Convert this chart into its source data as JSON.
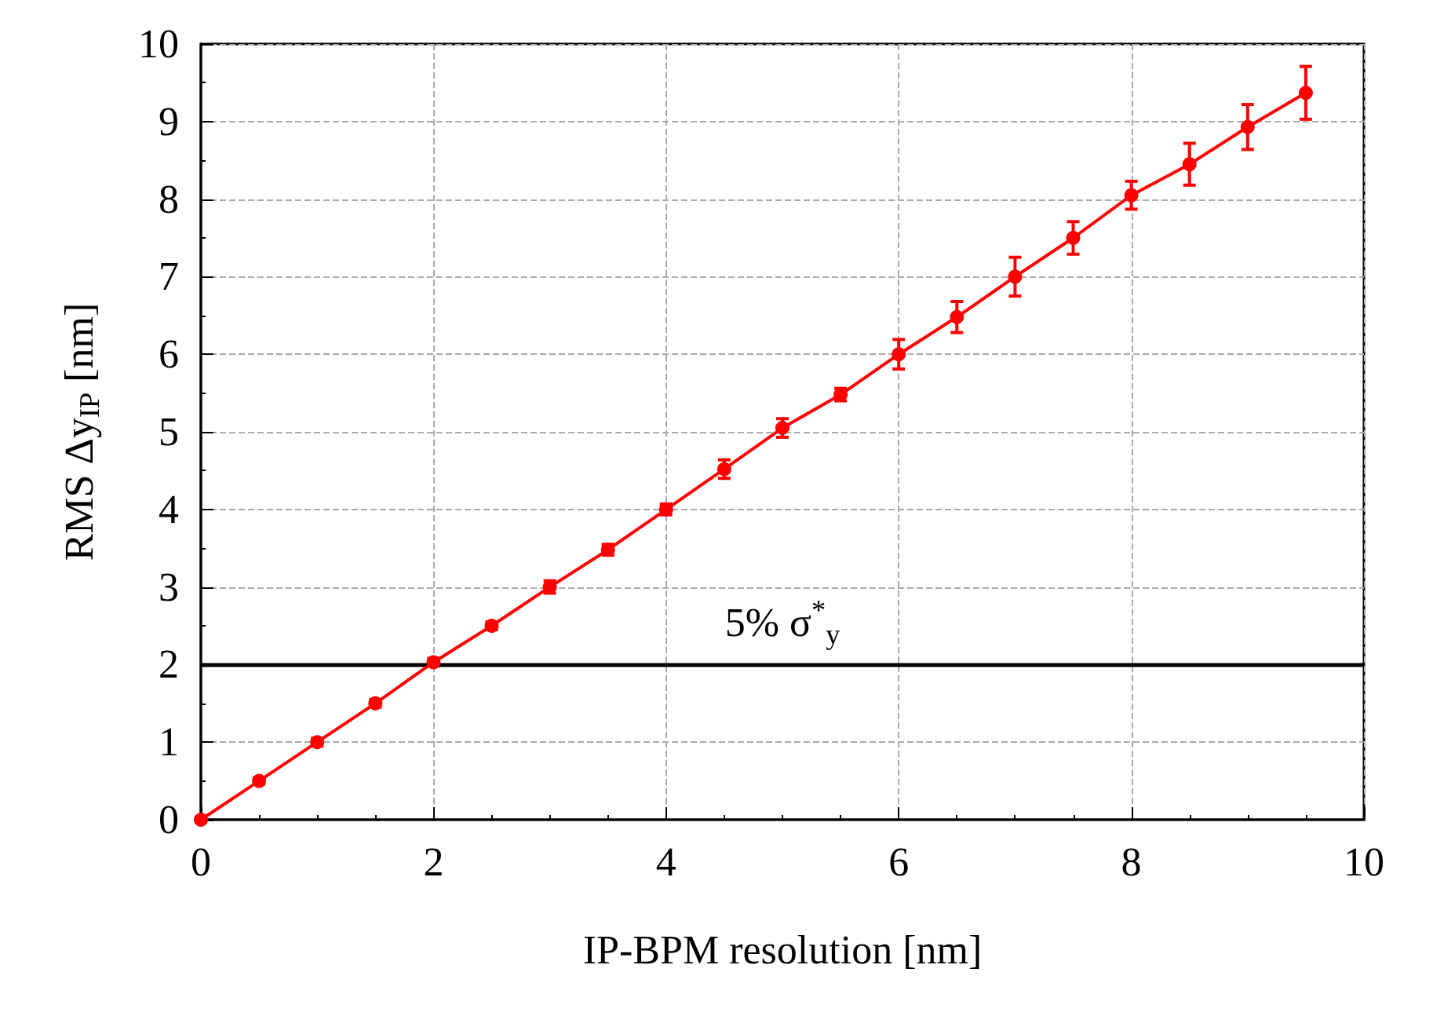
{
  "chart_data": {
    "type": "line",
    "xlabel": "IP-BPM resolution [nm]",
    "ylabel": "RMS Δy$_{IP}$ [nm]",
    "x": [
      0,
      0.5,
      1,
      1.5,
      2,
      2.5,
      3,
      3.5,
      4,
      4.5,
      5,
      5.5,
      6,
      6.5,
      7,
      7.5,
      8,
      8.5,
      9,
      9.5
    ],
    "series": [
      {
        "color": "#ff0000",
        "values": [
          0,
          0.5,
          1,
          1.5,
          2.03,
          2.5,
          3.0,
          3.48,
          4.0,
          4.52,
          5.05,
          5.48,
          6.0,
          6.48,
          7.0,
          7.5,
          8.05,
          8.45,
          8.93,
          9.37
        ],
        "errors": [
          0.03,
          0.04,
          0.05,
          0.05,
          0.05,
          0.05,
          0.08,
          0.07,
          0.07,
          0.12,
          0.12,
          0.08,
          0.19,
          0.2,
          0.25,
          0.21,
          0.18,
          0.27,
          0.29,
          0.34
        ]
      }
    ],
    "xlim": [
      0,
      10
    ],
    "xticks": [
      0,
      2,
      4,
      6,
      8,
      10
    ],
    "ylim": [
      0,
      10
    ],
    "yticks": [
      0,
      1,
      2,
      3,
      4,
      5,
      6,
      7,
      8,
      9,
      10
    ],
    "ref_lines": [
      {
        "axis": "y",
        "value": 2,
        "label": "5% σ$^{*}$$_{y}$",
        "color": "#000000",
        "line_style": "solid"
      }
    ],
    "grid": true,
    "marker": "circle",
    "line_style": "solid"
  }
}
